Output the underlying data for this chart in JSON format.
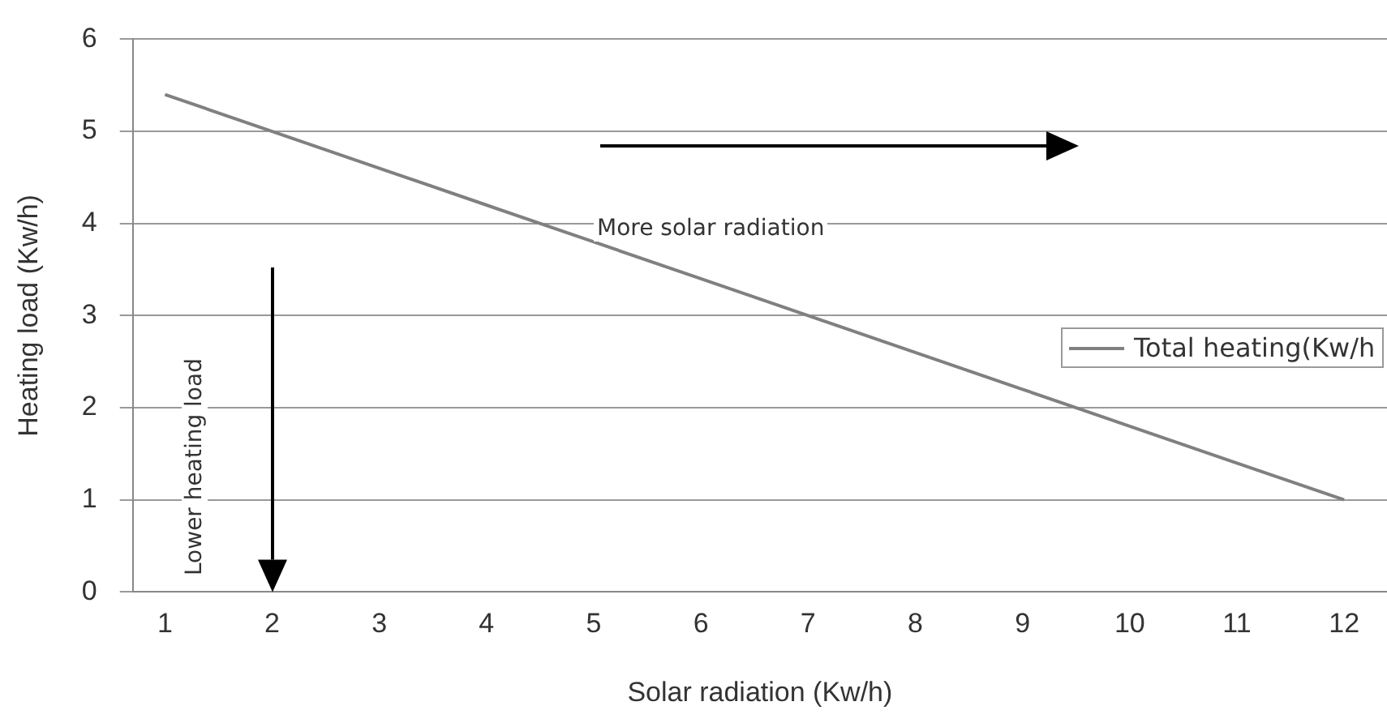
{
  "chart_data": {
    "type": "line",
    "xlabel": "Solar radiation (Kw/h)",
    "ylabel": "Heating load (Kw/h)",
    "x": [
      1,
      2,
      3,
      4,
      5,
      6,
      7,
      8,
      9,
      10,
      11,
      12
    ],
    "xlim": [
      0.7,
      12.4
    ],
    "xticks": [
      1,
      2,
      3,
      4,
      5,
      6,
      7,
      8,
      9,
      10,
      11,
      12
    ],
    "ylim": [
      0,
      6
    ],
    "yticks": [
      0,
      1,
      2,
      3,
      4,
      5,
      6
    ],
    "series": [
      {
        "name": "Total heating(Kw/h",
        "color": "#808080",
        "values": [
          5.4,
          5.0,
          4.6,
          4.2,
          3.8,
          3.4,
          3.0,
          2.6,
          2.2,
          1.8,
          1.4,
          1.0
        ]
      }
    ],
    "annotations": [
      "More solar radiation",
      "Lower heating load"
    ],
    "grid": "y",
    "legend": "right",
    "marker": "none",
    "line_style": "solid"
  }
}
